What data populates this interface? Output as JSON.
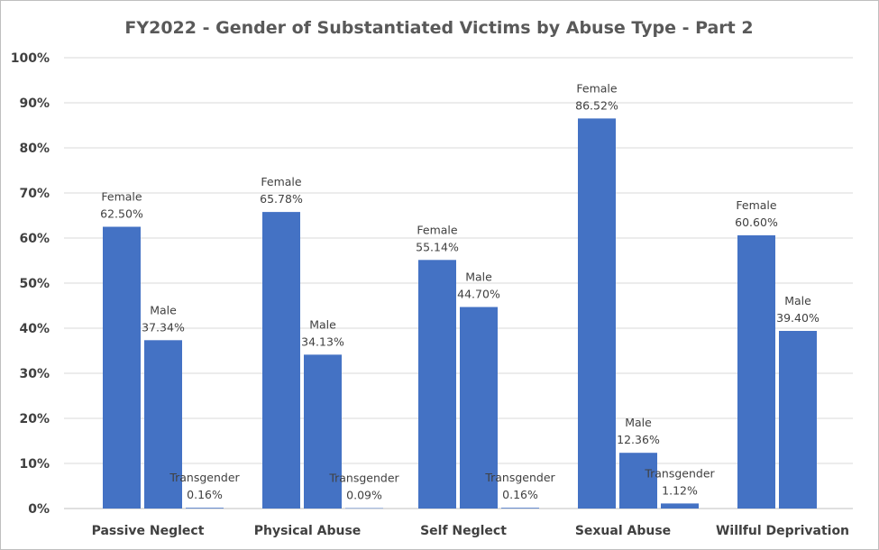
{
  "chart_data": {
    "type": "bar",
    "title": "FY2022 - Gender of Substantiated Victims by Abuse Type - Part 2",
    "xlabel": "",
    "ylabel": "",
    "ylim": [
      0,
      100
    ],
    "y_ticks": [
      "0%",
      "10%",
      "20%",
      "30%",
      "40%",
      "50%",
      "60%",
      "70%",
      "80%",
      "90%",
      "100%"
    ],
    "categories": [
      "Passive Neglect",
      "Physical Abuse",
      "Self Neglect",
      "Sexual Abuse",
      "Willful Deprivation"
    ],
    "series": [
      {
        "name": "Female",
        "values": [
          62.5,
          65.78,
          55.14,
          86.52,
          60.6
        ],
        "labels": [
          "62.50%",
          "65.78%",
          "55.14%",
          "86.52%",
          "60.60%"
        ]
      },
      {
        "name": "Male",
        "values": [
          37.34,
          34.13,
          44.7,
          12.36,
          39.4
        ],
        "labels": [
          "37.34%",
          "34.13%",
          "44.70%",
          "12.36%",
          "39.40%"
        ]
      },
      {
        "name": "Transgender",
        "values": [
          0.16,
          0.09,
          0.16,
          1.12,
          null
        ],
        "labels": [
          "0.16%",
          "0.09%",
          "0.16%",
          "1.12%",
          null
        ]
      }
    ],
    "bar_color": "#4472c4",
    "grid": true,
    "legend": "none"
  }
}
